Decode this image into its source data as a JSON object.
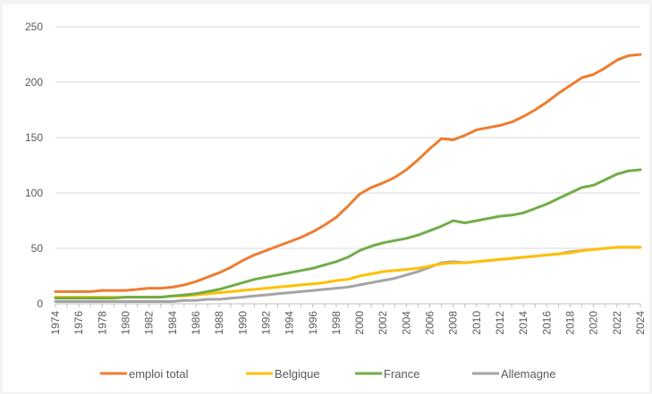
{
  "chart_data": {
    "type": "line",
    "title": "",
    "xlabel": "",
    "ylabel": "",
    "ylim": [
      0,
      250
    ],
    "yticks": [
      0,
      50,
      100,
      150,
      200,
      250
    ],
    "grid": "horizontal",
    "legend_position": "bottom",
    "x": [
      1974,
      1975,
      1976,
      1977,
      1978,
      1979,
      1980,
      1981,
      1982,
      1983,
      1984,
      1985,
      1986,
      1987,
      1988,
      1989,
      1990,
      1991,
      1992,
      1993,
      1994,
      1995,
      1996,
      1997,
      1998,
      1999,
      2000,
      2001,
      2002,
      2003,
      2004,
      2005,
      2006,
      2007,
      2008,
      2009,
      2010,
      2011,
      2012,
      2013,
      2014,
      2015,
      2016,
      2017,
      2018,
      2019,
      2020,
      2021,
      2022,
      2023,
      2024
    ],
    "xtick_labels": [
      "1974",
      "1976",
      "1978",
      "1980",
      "1982",
      "1984",
      "1986",
      "1988",
      "1990",
      "1992",
      "1994",
      "1996",
      "1998",
      "2000",
      "2002",
      "2004",
      "2006",
      "2008",
      "2010",
      "2012",
      "2014",
      "2016",
      "2018",
      "2020",
      "2022",
      "2024"
    ],
    "series": [
      {
        "name": "emploi total",
        "color": "#ED7D31",
        "values": [
          11,
          11,
          11,
          11,
          12,
          12,
          12,
          13,
          14,
          14,
          15,
          17,
          20,
          24,
          28,
          33,
          39,
          44,
          48,
          52,
          56,
          60,
          65,
          71,
          78,
          88,
          99,
          105,
          109,
          114,
          121,
          130,
          140,
          149,
          148,
          152,
          157,
          159,
          161,
          164,
          169,
          175,
          182,
          190,
          197,
          204,
          207,
          213,
          220,
          224,
          225
        ]
      },
      {
        "name": "Belgique",
        "color": "#FFC000",
        "values": [
          6,
          6,
          6,
          6,
          6,
          6,
          6,
          6,
          6,
          6,
          7,
          7,
          8,
          9,
          10,
          11,
          12,
          13,
          14,
          15,
          16,
          17,
          18,
          19,
          21,
          22,
          25,
          27,
          29,
          30,
          31,
          32,
          34,
          36,
          37,
          37,
          38,
          39,
          40,
          41,
          42,
          43,
          44,
          45,
          46,
          48,
          49,
          50,
          51,
          51,
          51
        ]
      },
      {
        "name": "France",
        "color": "#70AD47",
        "values": [
          5,
          5,
          5,
          5,
          5,
          5,
          6,
          6,
          6,
          6,
          7,
          8,
          9,
          11,
          13,
          16,
          19,
          22,
          24,
          26,
          28,
          30,
          32,
          35,
          38,
          42,
          48,
          52,
          55,
          57,
          59,
          62,
          66,
          70,
          75,
          73,
          75,
          77,
          79,
          80,
          82,
          86,
          90,
          95,
          100,
          105,
          107,
          112,
          117,
          120,
          121
        ]
      },
      {
        "name": "Allemagne",
        "color": "#A5A5A5",
        "values": [
          2,
          2,
          2,
          2,
          2,
          2,
          2,
          2,
          2,
          2,
          2,
          3,
          3,
          4,
          4,
          5,
          6,
          7,
          8,
          9,
          10,
          11,
          12,
          13,
          14,
          15,
          17,
          19,
          21,
          23,
          26,
          29,
          33,
          37,
          38,
          37,
          38,
          39,
          40,
          41,
          42,
          43,
          44,
          45,
          47,
          48,
          49,
          50,
          51,
          51,
          51
        ]
      }
    ]
  }
}
